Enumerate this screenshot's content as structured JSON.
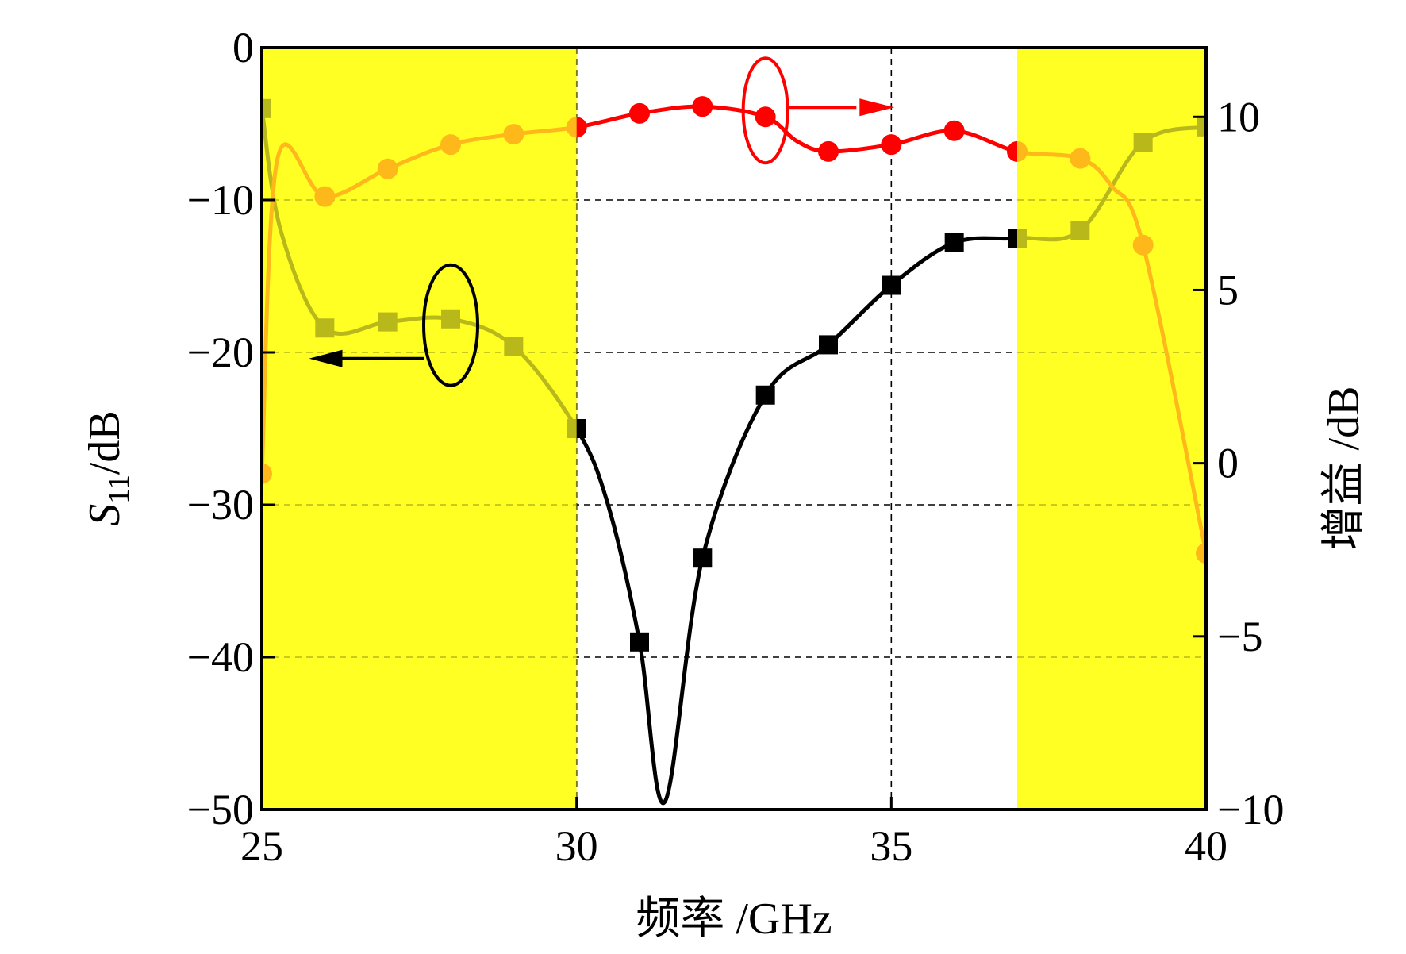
{
  "chart_data": {
    "type": "line",
    "xlabel": "频率 /GHz",
    "ylabel_left": {
      "italic": "S",
      "sub": "11",
      "unit": "/dB"
    },
    "ylabel_right": "增益 /dB",
    "xlim": [
      25,
      40
    ],
    "ylim_left": [
      -50,
      0
    ],
    "ylim_right": [
      -10,
      12
    ],
    "x_ticks": [
      25,
      30,
      35,
      40
    ],
    "x_tick_labels": [
      "25",
      "30",
      "35",
      "40"
    ],
    "y_left_ticks": [
      0,
      -10,
      -20,
      -30,
      -40,
      -50
    ],
    "y_left_tick_labels": [
      "0",
      "−10",
      "−20",
      "−30",
      "−40",
      "−50"
    ],
    "y_right_ticks": [
      10,
      5,
      0,
      -5,
      -10
    ],
    "y_right_tick_labels": [
      "10",
      "5",
      "0",
      "−5",
      "−10"
    ],
    "grid": "dashed, inside unshaded band",
    "shaded_regions": [
      {
        "from": 25,
        "to": 30,
        "color": "#ffff24"
      },
      {
        "from": 37,
        "to": 40,
        "color": "#ffff24"
      }
    ],
    "series": [
      {
        "axis": "left",
        "color": "#000000",
        "marker": "square",
        "x": [
          25,
          25.3,
          26,
          27,
          28,
          29,
          30,
          30.5,
          31,
          31.4,
          32,
          33,
          34,
          35,
          36,
          37,
          38,
          39,
          40
        ],
        "y": [
          -4,
          -12,
          -18.4,
          -18,
          -17.8,
          -19.6,
          -25,
          -30,
          -39,
          -49.5,
          -33.5,
          -22.8,
          -19.5,
          -15.6,
          -12.8,
          -12.5,
          -12,
          -6.2,
          -5.2
        ],
        "markers_x": [
          25,
          26,
          27,
          28,
          29,
          30,
          31,
          32,
          33,
          34,
          35,
          36,
          37,
          38,
          39,
          40
        ]
      },
      {
        "axis": "right",
        "color": "#ff0000",
        "marker": "circle",
        "x": [
          25,
          25.25,
          26,
          27,
          28,
          29,
          30,
          31,
          32,
          33,
          33.5,
          34,
          35,
          36,
          37,
          38,
          38.5,
          39,
          40
        ],
        "y": [
          -0.3,
          8.8,
          7.7,
          8.5,
          9.2,
          9.5,
          9.7,
          10.1,
          10.3,
          10.0,
          9.3,
          9.0,
          9.2,
          9.6,
          9.0,
          8.8,
          8.0,
          6.3,
          -2.6
        ],
        "markers_x": [
          25,
          26,
          27,
          28,
          29,
          30,
          31,
          32,
          33,
          34,
          35,
          36,
          37,
          38,
          39,
          40
        ]
      }
    ],
    "annotations": [
      {
        "series": 0,
        "marker": "ellipse",
        "arrow": "left"
      },
      {
        "series": 1,
        "marker": "ellipse",
        "arrow": "right"
      }
    ]
  }
}
